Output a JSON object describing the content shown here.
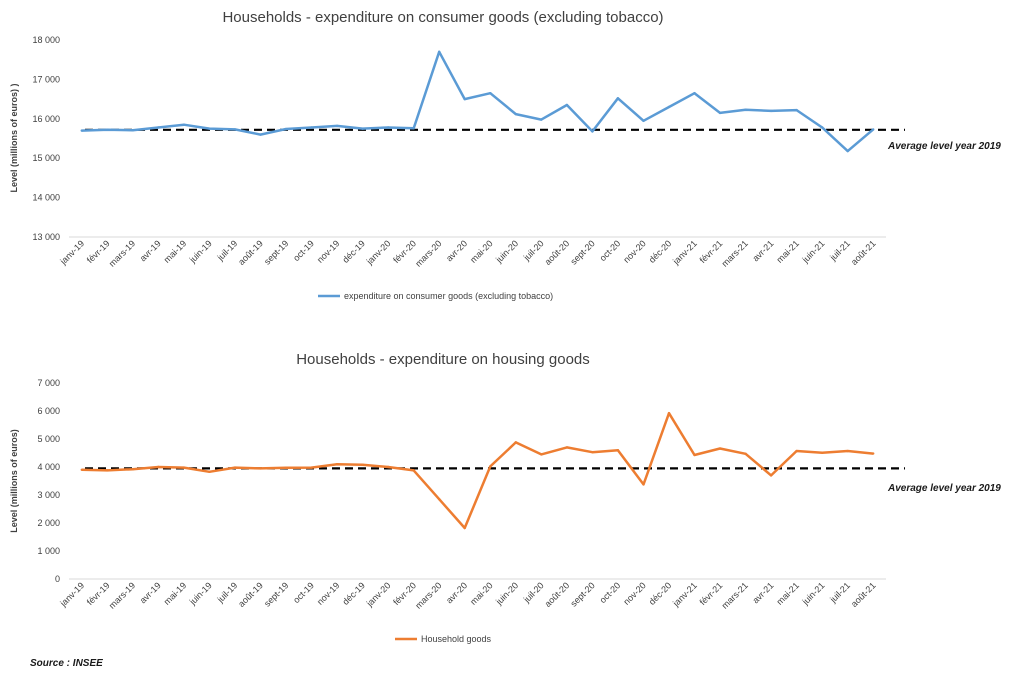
{
  "chart_data": [
    {
      "type": "line",
      "title": "Households - expenditure on consumer goods (excluding tobacco)",
      "xlabel": "",
      "ylabel": "Level (millions of euros) )",
      "ylim": [
        13000,
        18000
      ],
      "yticks": [
        "13 000",
        "14 000",
        "15 000",
        "16 000",
        "17 000",
        "18 000"
      ],
      "categories": [
        "janv-19",
        "févr-19",
        "mars-19",
        "avr-19",
        "mai-19",
        "juin-19",
        "juil-19",
        "août-19",
        "sept-19",
        "oct-19",
        "nov-19",
        "déc-19",
        "janv-20",
        "févr-20",
        "mars-20",
        "avr-20",
        "mai-20",
        "juin-20",
        "juil-20",
        "août-20",
        "sept-20",
        "oct-20",
        "nov-20",
        "déc-20",
        "janv-21",
        "févr-21",
        "mars-21",
        "avr-21",
        "mai-21",
        "juin-21",
        "juil-21",
        "août-21"
      ],
      "series": [
        {
          "name": "expenditure on consumer goods (excluding tobacco)",
          "color": "#5b9bd5",
          "values": [
            15700,
            15720,
            15710,
            15780,
            15850,
            15750,
            15730,
            15600,
            15740,
            15780,
            15820,
            15750,
            15780,
            15760,
            17700,
            16500,
            16650,
            16120,
            15980,
            16350,
            15680,
            16520,
            15950,
            16300,
            16650,
            16150,
            16230,
            16200,
            16220,
            15780,
            15180,
            15730
          ]
        }
      ],
      "reference_line": {
        "label": "Average level year 2019",
        "value": 15720,
        "color": "#000000"
      },
      "legend_position": "bottom",
      "grid": false
    },
    {
      "type": "line",
      "title": "Households - expenditure on housing goods",
      "xlabel": "",
      "ylabel": "Level (millions of euros)",
      "ylim": [
        0,
        7000
      ],
      "yticks": [
        "0",
        "1 000",
        "2 000",
        "3 000",
        "4 000",
        "5 000",
        "6 000",
        "7 000"
      ],
      "categories": [
        "janv-19",
        "févr-19",
        "mars-19",
        "avr-19",
        "mai-19",
        "juin-19",
        "juil-19",
        "août-19",
        "sept-19",
        "oct-19",
        "nov-19",
        "déc-19",
        "janv-20",
        "févr-20",
        "mars-20",
        "avr-20",
        "mai-20",
        "juin-20",
        "juil-20",
        "août-20",
        "sept-20",
        "oct-20",
        "nov-20",
        "déc-20",
        "janv-21",
        "févr-21",
        "mars-21",
        "avr-21",
        "mai-21",
        "juin-21",
        "juil-21",
        "août-21"
      ],
      "series": [
        {
          "name": "Household goods",
          "color": "#ed7d31",
          "values": [
            3900,
            3880,
            3920,
            4000,
            3980,
            3830,
            3980,
            3950,
            3970,
            3980,
            4100,
            4080,
            4000,
            3880,
            2850,
            1820,
            4020,
            4880,
            4450,
            4700,
            4530,
            4600,
            3380,
            5920,
            4430,
            4660,
            4470,
            3700,
            4570,
            4510,
            4570,
            4480
          ]
        }
      ],
      "reference_line": {
        "label": "Average level year 2019",
        "value": 3950,
        "color": "#000000"
      },
      "legend_position": "bottom",
      "grid": false
    }
  ],
  "source": "Source : INSEE"
}
